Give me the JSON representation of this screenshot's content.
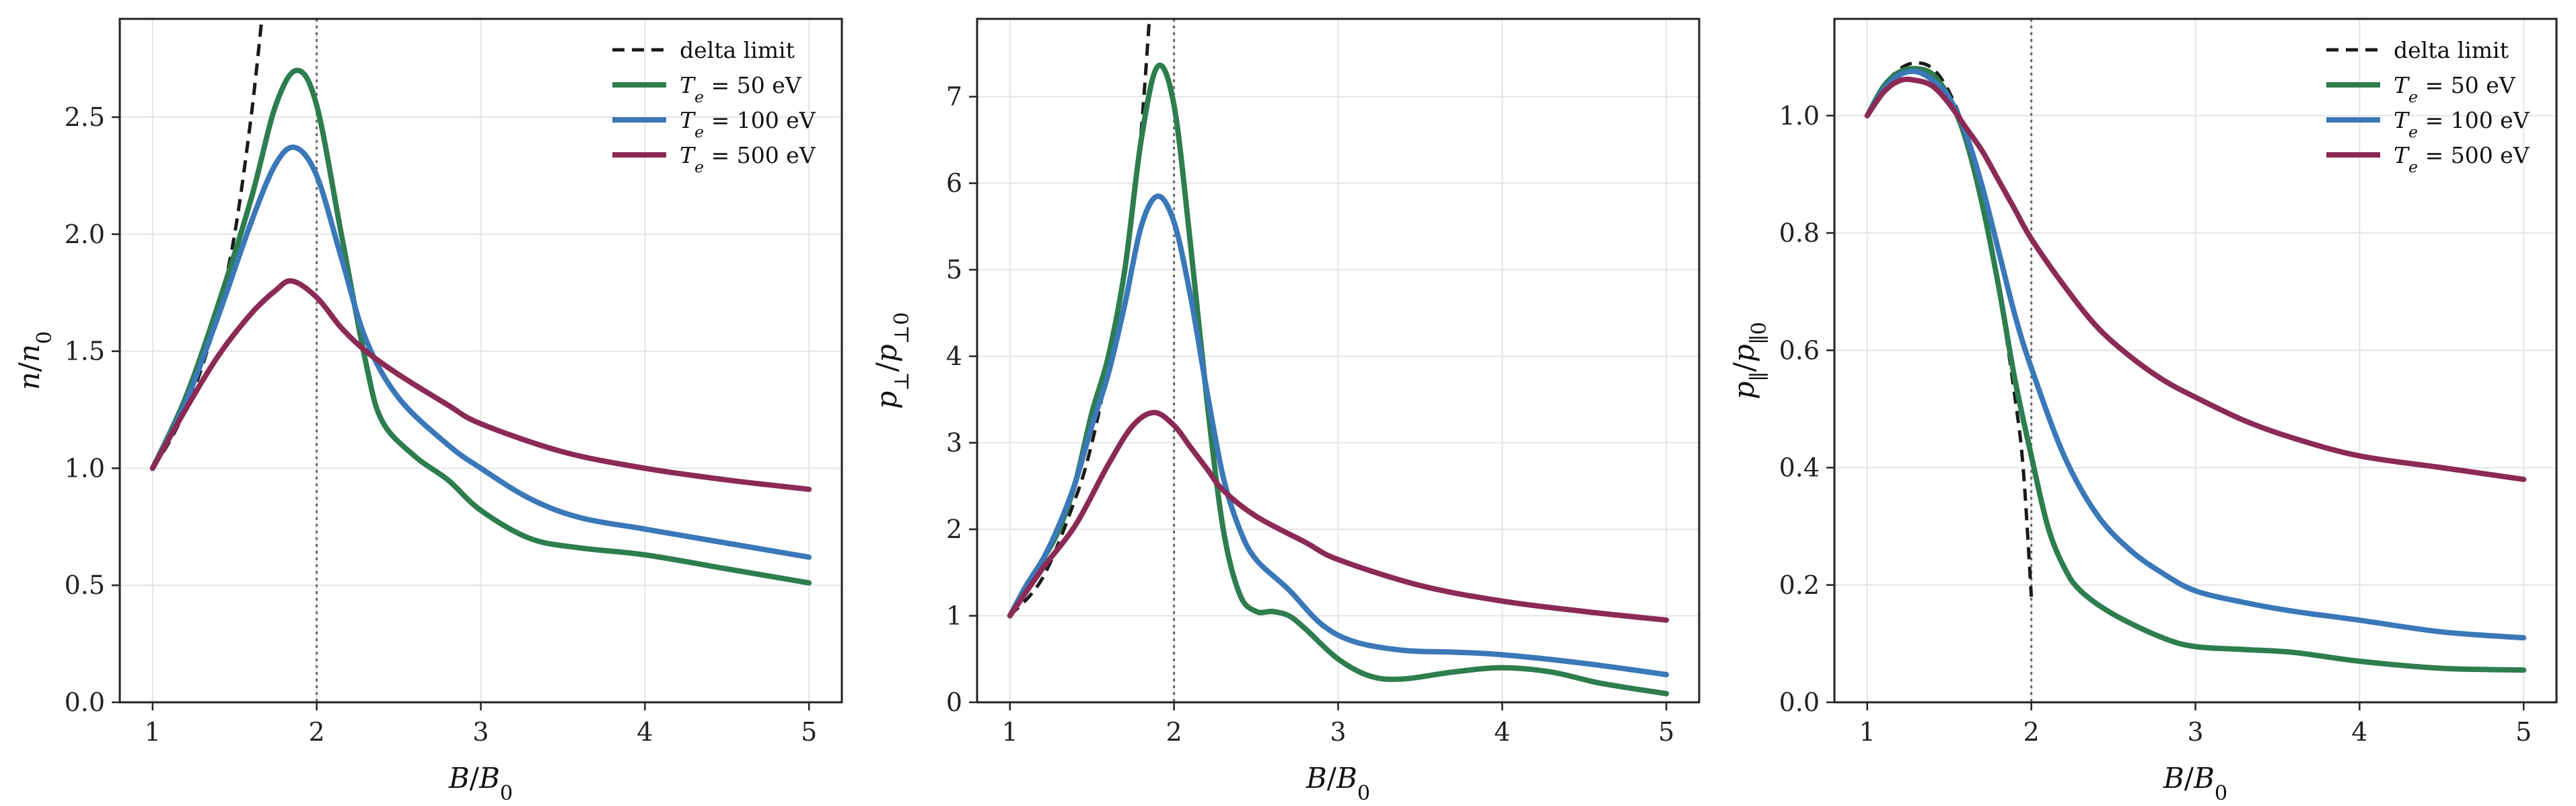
{
  "colors": {
    "delta": "#1a1a1a",
    "te50": "#2e7d4f",
    "te100": "#3a78b8",
    "te500": "#8b2a55",
    "grid": "#e4e4e4"
  },
  "chart_data": [
    {
      "type": "line",
      "xlabel": "B/B₀",
      "ylabel": "n/n₀",
      "xlim": [
        0.8,
        5.2
      ],
      "ylim": [
        0.0,
        2.92
      ],
      "xticks": [
        1,
        2,
        3,
        4,
        5
      ],
      "yticks": [
        0.0,
        0.5,
        1.0,
        1.5,
        2.0,
        2.5
      ],
      "ytick_format": 1,
      "grid": true,
      "legend": "top-right",
      "reference_line_x": 2,
      "series": [
        {
          "name": "delta limit",
          "key": "delta",
          "dashed": true,
          "x": [
            1.0,
            1.1,
            1.2,
            1.3,
            1.4,
            1.5,
            1.6,
            1.67
          ],
          "y": [
            1.0,
            1.11,
            1.25,
            1.43,
            1.67,
            2.0,
            2.5,
            2.95
          ]
        },
        {
          "name": "T_e = 50 eV",
          "key": "te50",
          "x": [
            1.0,
            1.2,
            1.4,
            1.6,
            1.75,
            1.88,
            2.0,
            2.15,
            2.3,
            2.4,
            2.6,
            2.8,
            3.0,
            3.3,
            3.6,
            4.0,
            4.5,
            5.0
          ],
          "y": [
            1.0,
            1.3,
            1.7,
            2.15,
            2.55,
            2.7,
            2.55,
            2.0,
            1.45,
            1.2,
            1.05,
            0.95,
            0.82,
            0.7,
            0.66,
            0.63,
            0.57,
            0.51
          ]
        },
        {
          "name": "T_e = 100 eV",
          "key": "te100",
          "x": [
            1.0,
            1.2,
            1.4,
            1.6,
            1.75,
            1.87,
            2.0,
            2.15,
            2.3,
            2.5,
            2.8,
            3.0,
            3.3,
            3.6,
            4.0,
            4.5,
            5.0
          ],
          "y": [
            1.0,
            1.28,
            1.65,
            2.05,
            2.3,
            2.37,
            2.25,
            1.9,
            1.55,
            1.3,
            1.1,
            1.0,
            0.87,
            0.79,
            0.74,
            0.68,
            0.62
          ]
        },
        {
          "name": "T_e = 500 eV",
          "key": "te500",
          "x": [
            1.0,
            1.2,
            1.4,
            1.6,
            1.75,
            1.85,
            2.0,
            2.15,
            2.3,
            2.5,
            2.8,
            3.0,
            3.5,
            4.0,
            4.5,
            5.0
          ],
          "y": [
            1.0,
            1.25,
            1.48,
            1.66,
            1.76,
            1.8,
            1.73,
            1.6,
            1.5,
            1.4,
            1.27,
            1.19,
            1.07,
            1.0,
            0.95,
            0.91
          ]
        }
      ]
    },
    {
      "type": "line",
      "xlabel": "B/B₀",
      "ylabel": "p⊥/p⊥0",
      "xlim": [
        0.8,
        5.2
      ],
      "ylim": [
        0.0,
        7.9
      ],
      "xticks": [
        1,
        2,
        3,
        4,
        5
      ],
      "yticks": [
        0,
        1,
        2,
        3,
        4,
        5,
        6,
        7
      ],
      "ytick_format": 0,
      "grid": true,
      "legend": "none",
      "reference_line_x": 2,
      "series": [
        {
          "name": "delta limit",
          "key": "delta",
          "dashed": true,
          "x": [
            1.0,
            1.2,
            1.4,
            1.5,
            1.6,
            1.7,
            1.75,
            1.8,
            1.85
          ],
          "y": [
            1.0,
            1.44,
            2.36,
            3.0,
            3.9,
            5.0,
            5.7,
            6.6,
            7.9
          ]
        },
        {
          "name": "T_e = 50 eV",
          "key": "te50",
          "x": [
            1.0,
            1.1,
            1.2,
            1.3,
            1.4,
            1.5,
            1.6,
            1.7,
            1.8,
            1.9,
            2.0,
            2.1,
            2.2,
            2.3,
            2.4,
            2.5,
            2.6,
            2.7,
            2.8,
            3.0,
            3.2,
            3.4,
            3.7,
            4.0,
            4.3,
            4.6,
            5.0
          ],
          "y": [
            1.0,
            1.35,
            1.65,
            2.0,
            2.55,
            3.35,
            4.0,
            5.0,
            6.5,
            7.35,
            6.9,
            5.3,
            3.5,
            2.0,
            1.25,
            1.05,
            1.05,
            1.0,
            0.85,
            0.5,
            0.3,
            0.27,
            0.35,
            0.4,
            0.35,
            0.22,
            0.1
          ]
        },
        {
          "name": "T_e = 100 eV",
          "key": "te100",
          "x": [
            1.0,
            1.1,
            1.2,
            1.3,
            1.4,
            1.5,
            1.6,
            1.7,
            1.8,
            1.9,
            2.0,
            2.1,
            2.2,
            2.3,
            2.4,
            2.5,
            2.7,
            2.9,
            3.1,
            3.4,
            3.7,
            4.0,
            4.5,
            5.0
          ],
          "y": [
            1.0,
            1.35,
            1.65,
            2.05,
            2.55,
            3.2,
            3.8,
            4.6,
            5.5,
            5.85,
            5.55,
            4.7,
            3.6,
            2.6,
            2.0,
            1.65,
            1.3,
            0.9,
            0.7,
            0.6,
            0.58,
            0.55,
            0.45,
            0.32
          ]
        },
        {
          "name": "T_e = 500 eV",
          "key": "te500",
          "x": [
            1.0,
            1.2,
            1.4,
            1.6,
            1.75,
            1.88,
            2.0,
            2.1,
            2.2,
            2.3,
            2.5,
            2.8,
            3.0,
            3.5,
            4.0,
            4.5,
            5.0
          ],
          "y": [
            1.0,
            1.55,
            2.05,
            2.75,
            3.2,
            3.35,
            3.2,
            2.95,
            2.7,
            2.45,
            2.15,
            1.85,
            1.65,
            1.35,
            1.17,
            1.05,
            0.95
          ]
        }
      ]
    },
    {
      "type": "line",
      "xlabel": "B/B₀",
      "ylabel": "p∥/p∥0",
      "xlim": [
        0.8,
        5.2
      ],
      "ylim": [
        0.0,
        1.165
      ],
      "xticks": [
        1,
        2,
        3,
        4,
        5
      ],
      "yticks": [
        0.0,
        0.2,
        0.4,
        0.6,
        0.8,
        1.0
      ],
      "ytick_format": 1,
      "grid": true,
      "legend": "top-right",
      "reference_line_x": 2,
      "series": [
        {
          "name": "delta limit",
          "key": "delta",
          "dashed": true,
          "x": [
            1.0,
            1.1,
            1.2,
            1.3,
            1.4,
            1.5,
            1.6,
            1.7,
            1.8,
            1.9,
            1.95,
            2.0
          ],
          "y": [
            1.0,
            1.05,
            1.08,
            1.09,
            1.08,
            1.04,
            0.97,
            0.86,
            0.71,
            0.52,
            0.4,
            0.18
          ]
        },
        {
          "name": "T_e = 50 eV",
          "key": "te50",
          "x": [
            1.0,
            1.1,
            1.2,
            1.3,
            1.4,
            1.5,
            1.6,
            1.7,
            1.8,
            1.9,
            2.0,
            2.1,
            2.2,
            2.3,
            2.5,
            2.8,
            3.0,
            3.3,
            3.6,
            4.0,
            4.5,
            5.0
          ],
          "y": [
            1.0,
            1.05,
            1.075,
            1.08,
            1.07,
            1.03,
            0.96,
            0.85,
            0.71,
            0.55,
            0.42,
            0.3,
            0.23,
            0.19,
            0.15,
            0.11,
            0.095,
            0.09,
            0.085,
            0.07,
            0.058,
            0.055
          ]
        },
        {
          "name": "T_e = 100 eV",
          "key": "te100",
          "x": [
            1.0,
            1.1,
            1.2,
            1.3,
            1.4,
            1.5,
            1.6,
            1.7,
            1.8,
            1.9,
            2.0,
            2.2,
            2.4,
            2.6,
            2.8,
            3.0,
            3.3,
            3.6,
            4.0,
            4.5,
            5.0
          ],
          "y": [
            1.0,
            1.045,
            1.07,
            1.075,
            1.06,
            1.03,
            0.97,
            0.88,
            0.77,
            0.66,
            0.57,
            0.42,
            0.32,
            0.26,
            0.22,
            0.19,
            0.17,
            0.155,
            0.14,
            0.12,
            0.11
          ]
        },
        {
          "name": "T_e = 500 eV",
          "key": "te500",
          "x": [
            1.0,
            1.1,
            1.2,
            1.3,
            1.4,
            1.5,
            1.6,
            1.7,
            1.8,
            1.9,
            2.0,
            2.2,
            2.4,
            2.6,
            2.8,
            3.0,
            3.3,
            3.6,
            4.0,
            4.5,
            5.0
          ],
          "y": [
            1.0,
            1.04,
            1.06,
            1.06,
            1.05,
            1.02,
            0.98,
            0.94,
            0.89,
            0.84,
            0.79,
            0.71,
            0.64,
            0.59,
            0.55,
            0.52,
            0.48,
            0.45,
            0.42,
            0.4,
            0.38
          ]
        }
      ]
    }
  ],
  "legend_labels": {
    "delta": "delta limit",
    "te50_prefix": "T",
    "te50_sub": "e",
    "te50_rest": " = 50 eV",
    "te100_prefix": "T",
    "te100_sub": "e",
    "te100_rest": " = 100 eV",
    "te500_prefix": "T",
    "te500_sub": "e",
    "te500_rest": " = 500 eV"
  }
}
